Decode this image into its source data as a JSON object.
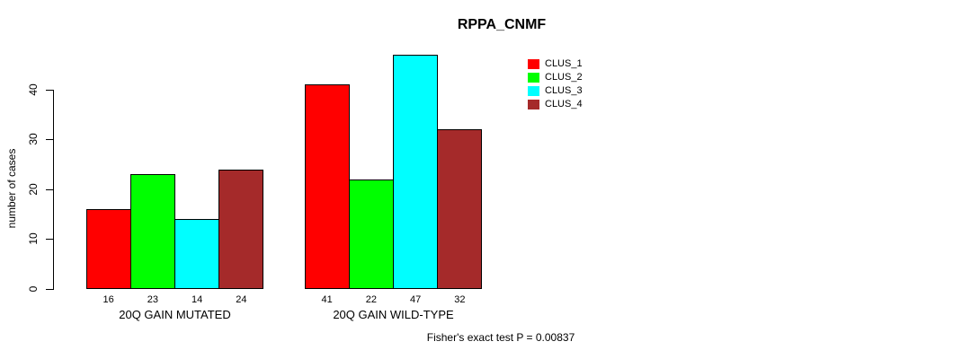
{
  "chart_data": {
    "type": "bar",
    "title": "RPPA_CNMF",
    "xlabel": "",
    "ylabel": "number of cases",
    "categories": [
      "20Q GAIN MUTATED",
      "20Q GAIN WILD-TYPE"
    ],
    "series": [
      {
        "name": "CLUS_1",
        "color": "#FF0000",
        "values": [
          16,
          41
        ]
      },
      {
        "name": "CLUS_2",
        "color": "#00FF00",
        "values": [
          23,
          22
        ]
      },
      {
        "name": "CLUS_3",
        "color": "#00FFFF",
        "values": [
          14,
          47
        ]
      },
      {
        "name": "CLUS_4",
        "color": "#A52A2A",
        "values": [
          24,
          32
        ]
      }
    ],
    "yticks": [
      0,
      10,
      20,
      30,
      40
    ],
    "ylim": [
      0,
      47
    ],
    "grid": false,
    "bar_value_labels": true,
    "bar_border_color": "#000000",
    "legend_position": "top-right",
    "footnote": "Fisher's exact test P = 0.00837"
  }
}
